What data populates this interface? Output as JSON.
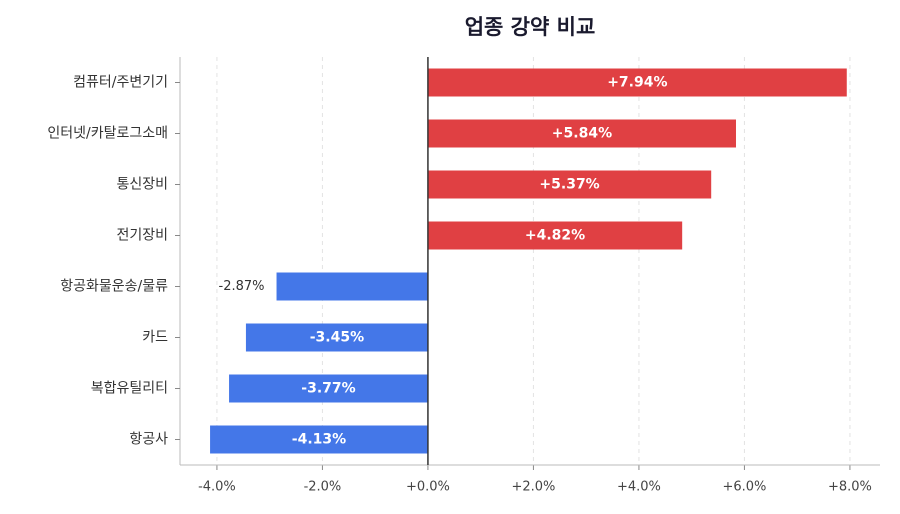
{
  "chart_data": {
    "type": "barh",
    "title": "업종 강약 비교",
    "categories": [
      "컴퓨터/주변기기",
      "인터넷/카탈로그소매",
      "통신장비",
      "전기장비",
      "항공화물운송/물류",
      "카드",
      "복합유틸리티",
      "항공사"
    ],
    "values": [
      7.94,
      5.84,
      5.37,
      4.82,
      -2.87,
      -3.45,
      -3.77,
      -4.13
    ],
    "value_labels": [
      "+7.94%",
      "+5.84%",
      "+5.37%",
      "+4.82%",
      "-2.87%",
      "-3.45%",
      "-3.77%",
      "-4.13%"
    ],
    "positive_color": "#e04043",
    "negative_color": "#4477e8",
    "xlim": [
      -4.7,
      8.57
    ],
    "xticks": [
      {
        "value": -4,
        "label": "-4.0%"
      },
      {
        "value": -2,
        "label": "-2.0%"
      },
      {
        "value": 0,
        "label": "+0.0%"
      },
      {
        "value": 2,
        "label": "+2.0%"
      },
      {
        "value": 4,
        "label": "+4.0%"
      },
      {
        "value": 6,
        "label": "+6.0%"
      },
      {
        "value": 8,
        "label": "+8.0%"
      }
    ],
    "grid": true
  }
}
